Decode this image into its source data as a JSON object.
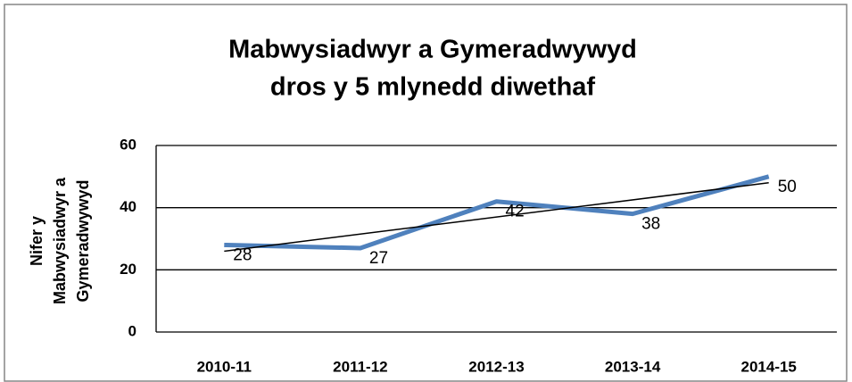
{
  "chart_data": {
    "type": "line",
    "title": [
      "Mabwysiadwyr a Gymeradwywyd",
      "dros y 5 mlynedd diwethaf"
    ],
    "y_label": [
      "Nifer y",
      "Mabwysiadwyr a",
      "Gymeradwywyd"
    ],
    "categories": [
      "2010-11",
      "2011-12",
      "2012-13",
      "2013-14",
      "2014-15"
    ],
    "series": [
      {
        "name": "Mabwysiadwyr a Gymeradwywyd",
        "color": "#4f81bd",
        "values": [
          28,
          27,
          42,
          38,
          50
        ]
      }
    ],
    "ylim": [
      0,
      60
    ],
    "yticks": [
      0,
      20,
      40,
      60
    ],
    "grid": true,
    "trendline": true,
    "data_labels": true
  }
}
